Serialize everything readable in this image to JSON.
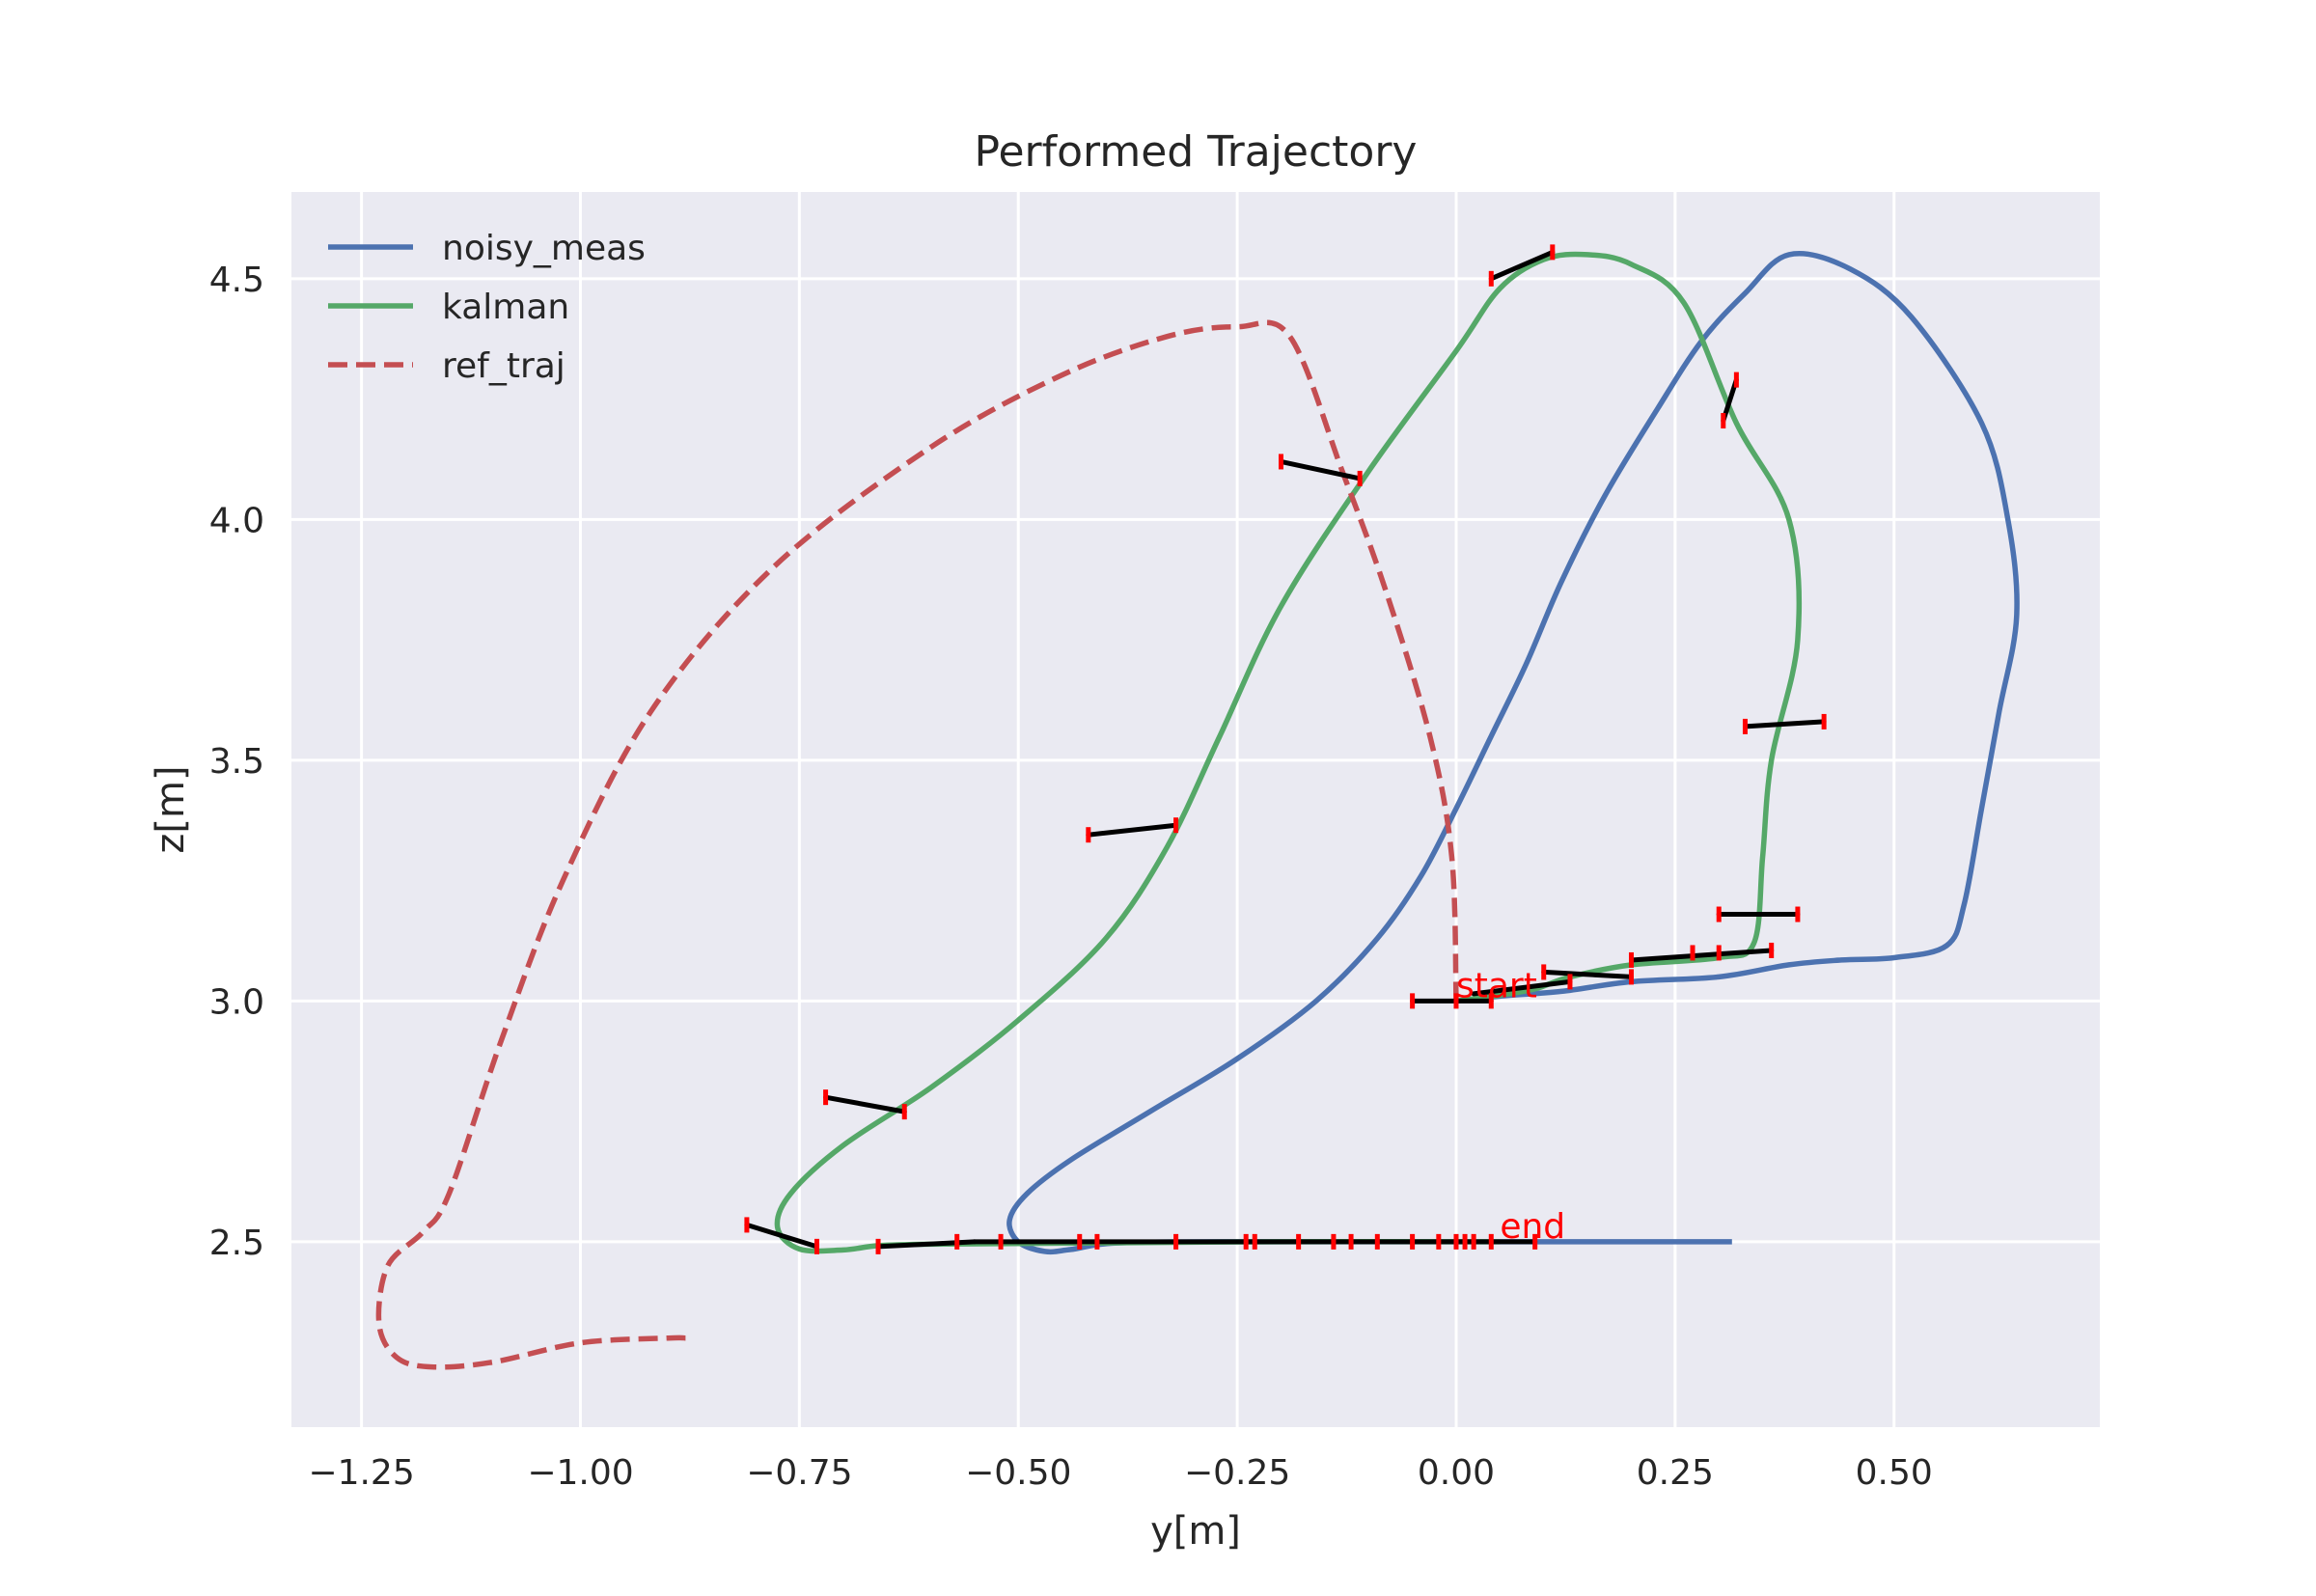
{
  "chart_data": {
    "type": "line",
    "title": "Performed Trajectory",
    "xlabel": "y[m]",
    "ylabel": "z[m]",
    "xlim": [
      -1.33,
      0.735
    ],
    "ylim": [
      2.115,
      4.68
    ],
    "xticks": [
      -1.25,
      -1.0,
      -0.75,
      -0.5,
      -0.25,
      0.0,
      0.25,
      0.5
    ],
    "xtick_labels": [
      "−1.25",
      "−1.00",
      "−0.75",
      "−0.50",
      "−0.25",
      "0.00",
      "0.25",
      "0.50"
    ],
    "yticks": [
      2.5,
      3.0,
      3.5,
      4.0,
      4.5
    ],
    "ytick_labels": [
      "2.5",
      "3.0",
      "3.5",
      "4.0",
      "4.5"
    ],
    "grid": true,
    "legend_position": "top-left",
    "series": [
      {
        "name": "noisy_meas",
        "color": "#4c72b0",
        "style": "solid",
        "points": [
          [
            0.315,
            2.5
          ],
          [
            0.0,
            2.5
          ],
          [
            -0.2,
            2.5
          ],
          [
            -0.38,
            2.498
          ],
          [
            -0.44,
            2.484
          ],
          [
            -0.47,
            2.48
          ],
          [
            -0.5,
            2.5
          ],
          [
            -0.51,
            2.545
          ],
          [
            -0.49,
            2.6
          ],
          [
            -0.44,
            2.67
          ],
          [
            -0.35,
            2.77
          ],
          [
            -0.25,
            2.88
          ],
          [
            -0.16,
            3.0
          ],
          [
            -0.09,
            3.13
          ],
          [
            -0.04,
            3.26
          ],
          [
            0.0,
            3.4
          ],
          [
            0.04,
            3.55
          ],
          [
            0.08,
            3.7
          ],
          [
            0.12,
            3.87
          ],
          [
            0.17,
            4.05
          ],
          [
            0.23,
            4.23
          ],
          [
            0.28,
            4.37
          ],
          [
            0.33,
            4.47
          ],
          [
            0.38,
            4.55
          ],
          [
            0.45,
            4.52
          ],
          [
            0.52,
            4.42
          ],
          [
            0.6,
            4.2
          ],
          [
            0.63,
            4.0
          ],
          [
            0.64,
            3.8
          ],
          [
            0.62,
            3.6
          ],
          [
            0.6,
            3.4
          ],
          [
            0.58,
            3.2
          ],
          [
            0.56,
            3.115
          ],
          [
            0.5,
            3.09
          ],
          [
            0.44,
            3.085
          ],
          [
            0.38,
            3.075
          ],
          [
            0.3,
            3.05
          ],
          [
            0.2,
            3.04
          ],
          [
            0.12,
            3.02
          ],
          [
            0.05,
            3.01
          ],
          [
            0.0,
            3.0
          ]
        ]
      },
      {
        "name": "kalman",
        "color": "#55a868",
        "style": "solid",
        "points": [
          [
            0.05,
            2.5
          ],
          [
            -0.2,
            2.5
          ],
          [
            -0.45,
            2.497
          ],
          [
            -0.6,
            2.495
          ],
          [
            -0.66,
            2.492
          ],
          [
            -0.7,
            2.483
          ],
          [
            -0.75,
            2.485
          ],
          [
            -0.775,
            2.53
          ],
          [
            -0.76,
            2.6
          ],
          [
            -0.7,
            2.7
          ],
          [
            -0.6,
            2.82
          ],
          [
            -0.5,
            2.96
          ],
          [
            -0.4,
            3.13
          ],
          [
            -0.33,
            3.32
          ],
          [
            -0.27,
            3.55
          ],
          [
            -0.2,
            3.82
          ],
          [
            -0.1,
            4.1
          ],
          [
            0.0,
            4.35
          ],
          [
            0.05,
            4.48
          ],
          [
            0.1,
            4.54
          ],
          [
            0.15,
            4.55
          ],
          [
            0.2,
            4.53
          ],
          [
            0.26,
            4.45
          ],
          [
            0.32,
            4.2
          ],
          [
            0.38,
            4.0
          ],
          [
            0.39,
            3.75
          ],
          [
            0.36,
            3.5
          ],
          [
            0.35,
            3.3
          ],
          [
            0.34,
            3.12
          ],
          [
            0.3,
            3.09
          ],
          [
            0.2,
            3.075
          ],
          [
            0.13,
            3.05
          ],
          [
            0.09,
            3.025
          ],
          [
            0.05,
            3.012
          ],
          [
            0.0,
            3.0
          ]
        ]
      },
      {
        "name": "ref_traj",
        "color": "#c44e52",
        "style": "dashed",
        "points": [
          [
            0.0,
            3.0
          ],
          [
            -0.005,
            3.3
          ],
          [
            -0.03,
            3.55
          ],
          [
            -0.08,
            3.85
          ],
          [
            -0.13,
            4.1
          ],
          [
            -0.19,
            4.38
          ],
          [
            -0.25,
            4.4
          ],
          [
            -0.33,
            4.38
          ],
          [
            -0.45,
            4.3
          ],
          [
            -0.6,
            4.15
          ],
          [
            -0.78,
            3.9
          ],
          [
            -0.92,
            3.6
          ],
          [
            -1.02,
            3.25
          ],
          [
            -1.09,
            2.92
          ],
          [
            -1.15,
            2.6
          ],
          [
            -1.18,
            2.52
          ],
          [
            -1.22,
            2.45
          ],
          [
            -1.23,
            2.33
          ],
          [
            -1.21,
            2.26
          ],
          [
            -1.17,
            2.24
          ],
          [
            -1.1,
            2.25
          ],
          [
            -1.0,
            2.29
          ],
          [
            -0.9,
            2.3
          ],
          [
            -0.88,
            2.3
          ]
        ]
      }
    ],
    "error_segments": [
      [
        [
          -0.81,
          2.535
        ],
        [
          -0.73,
          2.49
        ]
      ],
      [
        [
          -0.72,
          2.8
        ],
        [
          -0.63,
          2.77
        ]
      ],
      [
        [
          -0.42,
          3.345
        ],
        [
          -0.32,
          3.365
        ]
      ],
      [
        [
          -0.2,
          4.12
        ],
        [
          -0.11,
          4.085
        ]
      ],
      [
        [
          0.04,
          4.5
        ],
        [
          0.11,
          4.555
        ]
      ],
      [
        [
          0.305,
          4.205
        ],
        [
          0.32,
          4.29
        ]
      ],
      [
        [
          0.33,
          3.57
        ],
        [
          0.42,
          3.58
        ]
      ],
      [
        [
          0.3,
          3.18
        ],
        [
          0.39,
          3.18
        ]
      ],
      [
        [
          0.2,
          3.085
        ],
        [
          0.36,
          3.105
        ]
      ],
      [
        [
          0.1,
          3.06
        ],
        [
          0.2,
          3.05
        ]
      ],
      [
        [
          -0.05,
          3.0
        ],
        [
          0.04,
          3.0
        ]
      ],
      [
        [
          0.02,
          3.015
        ],
        [
          0.13,
          3.04
        ]
      ],
      [
        [
          -0.66,
          2.49
        ],
        [
          -0.55,
          2.5
        ]
      ],
      [
        [
          -0.55,
          2.5
        ],
        [
          0.09,
          2.5
        ]
      ]
    ],
    "tick_marks": [
      [
        -0.81,
        2.535
      ],
      [
        -0.73,
        2.49
      ],
      [
        -0.72,
        2.8
      ],
      [
        -0.63,
        2.77
      ],
      [
        -0.42,
        3.345
      ],
      [
        -0.32,
        3.365
      ],
      [
        -0.2,
        4.12
      ],
      [
        -0.11,
        4.085
      ],
      [
        0.04,
        4.5
      ],
      [
        0.11,
        4.555
      ],
      [
        0.305,
        4.205
      ],
      [
        0.32,
        4.29
      ],
      [
        0.33,
        3.57
      ],
      [
        0.42,
        3.58
      ],
      [
        0.3,
        3.18
      ],
      [
        0.39,
        3.18
      ],
      [
        0.2,
        3.085
      ],
      [
        0.36,
        3.105
      ],
      [
        0.1,
        3.06
      ],
      [
        0.2,
        3.05
      ],
      [
        0.27,
        3.1
      ],
      [
        0.3,
        3.1
      ],
      [
        -0.05,
        3.0
      ],
      [
        0.04,
        3.0
      ],
      [
        0.13,
        3.04
      ],
      [
        0.0,
        3.0
      ],
      [
        -0.66,
        2.49
      ],
      [
        -0.57,
        2.5
      ],
      [
        -0.52,
        2.5
      ],
      [
        -0.43,
        2.5
      ],
      [
        -0.41,
        2.5
      ],
      [
        -0.32,
        2.5
      ],
      [
        -0.24,
        2.5
      ],
      [
        -0.23,
        2.5
      ],
      [
        -0.18,
        2.5
      ],
      [
        -0.14,
        2.5
      ],
      [
        -0.12,
        2.5
      ],
      [
        -0.09,
        2.5
      ],
      [
        -0.05,
        2.5
      ],
      [
        -0.02,
        2.5
      ],
      [
        0.0,
        2.5
      ],
      [
        0.01,
        2.5
      ],
      [
        0.02,
        2.5
      ],
      [
        0.04,
        2.5
      ],
      [
        0.09,
        2.5
      ]
    ],
    "annotations": [
      {
        "text": "start",
        "x": 0.0,
        "y": 3.0
      },
      {
        "text": "end",
        "x": 0.05,
        "y": 2.5
      }
    ]
  }
}
